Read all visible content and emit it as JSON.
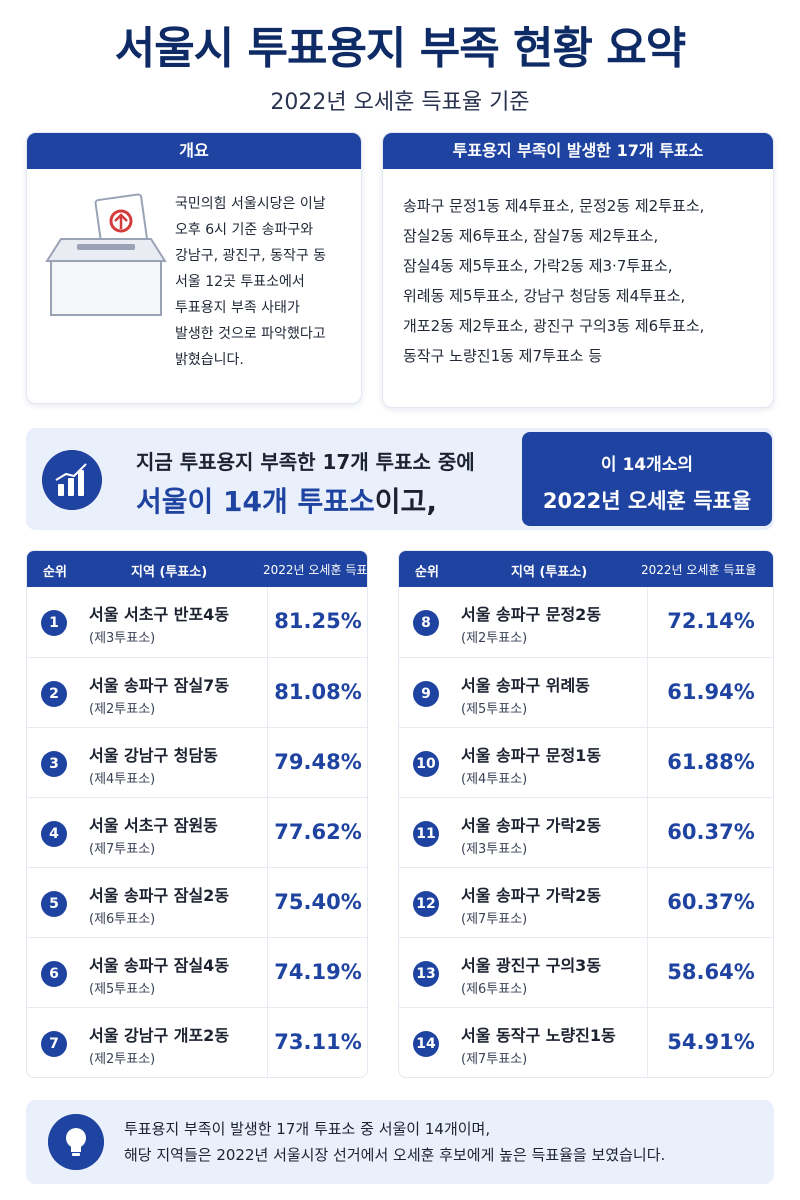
{
  "header": {
    "title": "서울시 투표용지 부족 현황 요약",
    "subtitle": "2022년 오세훈 득표율 기준"
  },
  "overview": {
    "heading": "개요",
    "lines": [
      "국민의힘 서울시당은 이날",
      "오후 6시 기준 송파구와",
      "강남구, 광진구, 동작구 동",
      "서울 12곳 투표소에서",
      "투표용지 부족 사태가",
      "발생한 것으로 파악했다고",
      "밝혔습니다."
    ],
    "icon": "ballot-box-icon"
  },
  "stations_card": {
    "heading": "투표용지 부족이 발생한 17개 투표소",
    "lines": [
      "송파구 문정1동 제4투표소, 문정2동 제2투표소,",
      "잠실2동 제6투표소, 잠실7동 제2투표소,",
      "잠실4동 제5투표소, 가락2동 제3·7투표소,",
      "위례동 제5투표소, 강남구 청담동 제4투표소,",
      "개포2동 제2투표소, 광진구 구의3동 제6투표소,",
      "동작구 노량진1동 제7투표소 등"
    ]
  },
  "banner": {
    "line1": "지금 투표용지 부족한 17개 투표소 중에",
    "line2_main": "서울이 14개 투표소",
    "line2_suffix": "이고,",
    "right_line1": "이 14개소의",
    "right_line2": "2022년 오세훈 득표율",
    "icon": "bar-chart-icon"
  },
  "table": {
    "headers": {
      "rank": "순위",
      "region": "지역 (투표소)",
      "rate": "2022년 오세훈 득표율"
    },
    "left": [
      {
        "rank": "1",
        "region": "서울 서초구 반포4동",
        "station": "(제3투표소)",
        "rate": "81.25%"
      },
      {
        "rank": "2",
        "region": "서울 송파구 잠실7동",
        "station": "(제2투표소)",
        "rate": "81.08%"
      },
      {
        "rank": "3",
        "region": "서울 강남구 청담동",
        "station": "(제4투표소)",
        "rate": "79.48%"
      },
      {
        "rank": "4",
        "region": "서울 서초구 잠원동",
        "station": "(제7투표소)",
        "rate": "77.62%"
      },
      {
        "rank": "5",
        "region": "서울 송파구 잠실2동",
        "station": "(제6투표소)",
        "rate": "75.40%"
      },
      {
        "rank": "6",
        "region": "서울 송파구 잠실4동",
        "station": "(제5투표소)",
        "rate": "74.19%"
      },
      {
        "rank": "7",
        "region": "서울 강남구 개포2동",
        "station": "(제2투표소)",
        "rate": "73.11%"
      }
    ],
    "right": [
      {
        "rank": "8",
        "region": "서울 송파구 문정2동",
        "station": "(제2투표소)",
        "rate": "72.14%"
      },
      {
        "rank": "9",
        "region": "서울 송파구 위례동",
        "station": "(제5투표소)",
        "rate": "61.94%"
      },
      {
        "rank": "10",
        "region": "서울 송파구 문정1동",
        "station": "(제4투표소)",
        "rate": "61.88%"
      },
      {
        "rank": "11",
        "region": "서울 송파구 가락2동",
        "station": "(제3투표소)",
        "rate": "60.37%"
      },
      {
        "rank": "12",
        "region": "서울 송파구 가락2동",
        "station": "(제7투표소)",
        "rate": "60.37%"
      },
      {
        "rank": "13",
        "region": "서울 광진구 구의3동",
        "station": "(제6투표소)",
        "rate": "58.64%"
      },
      {
        "rank": "14",
        "region": "서울 동작구 노량진1동",
        "station": "(제7투표소)",
        "rate": "54.91%"
      }
    ]
  },
  "footer": {
    "line1": "투표용지 부족이 발생한 17개 투표소 중 서울이 14개이며,",
    "line2": "해당 지역들은 2022년 서울시장 선거에서 오세훈 후보에게 높은 득표율을 보였습니다.",
    "icon": "lightbulb-icon"
  },
  "colors": {
    "primary": "#1f43a0",
    "title": "#0f2b66",
    "panel": "#e9effb"
  }
}
